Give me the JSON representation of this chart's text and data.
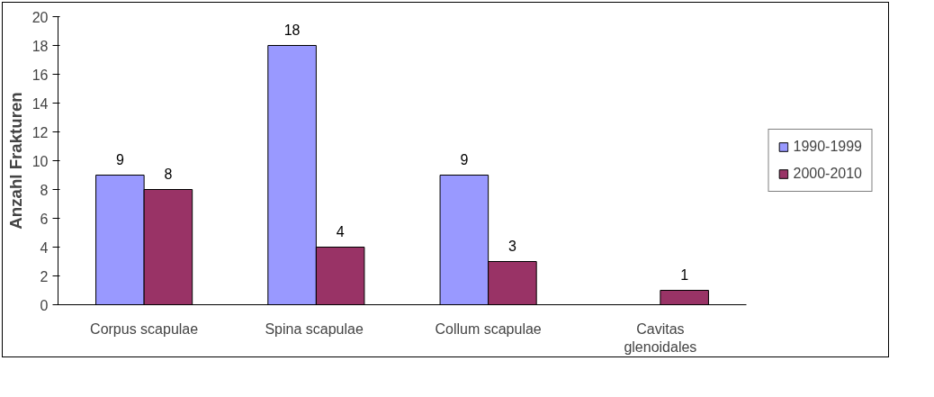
{
  "chart_data": {
    "type": "bar",
    "ylabel": "Anzahl Frakturen",
    "categories": [
      "Corpus scapulae",
      "Spina  scapulae",
      "Collum scapulae",
      "Cavitas glenoidales"
    ],
    "series": [
      {
        "name": "1990-1999",
        "color": "#9999ff",
        "values": [
          9,
          18,
          9,
          null
        ],
        "value_labels": [
          "9",
          "18",
          "9",
          null
        ]
      },
      {
        "name": "2000-2010",
        "color": "#993366",
        "values": [
          8,
          4,
          3,
          1
        ],
        "value_labels": [
          "8",
          "4",
          "3",
          "1"
        ]
      }
    ],
    "ylim": [
      0,
      20
    ],
    "yticks": [
      0,
      2,
      4,
      6,
      8,
      10,
      12,
      14,
      16,
      18,
      20
    ],
    "grid": false,
    "legend": "right"
  }
}
